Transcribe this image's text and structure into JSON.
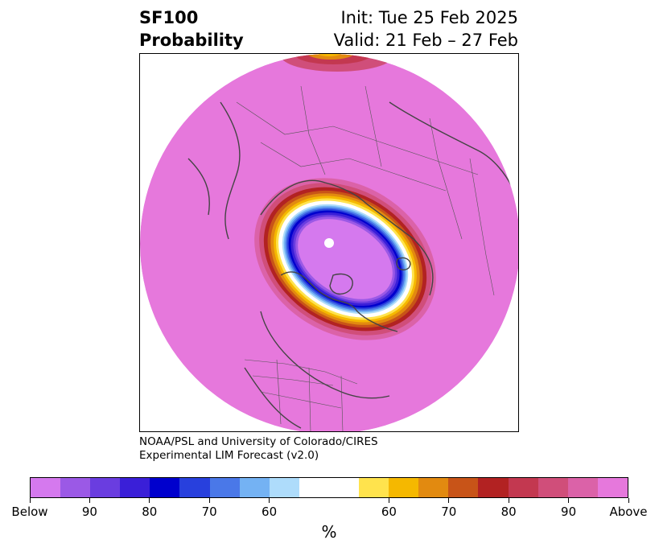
{
  "title": {
    "variable": "SF100",
    "subtitle": "Probability",
    "init": "Init: Tue 25 Feb 2025",
    "valid": "Valid: 21 Feb – 27 Feb"
  },
  "credit": {
    "line1": "NOAA/PSL and University of Colorado/CIRES",
    "line2": "Experimental LIM Forecast (v2.0)"
  },
  "colorbar": {
    "units": "%",
    "colors": [
      "#d579ee",
      "#9b59e6",
      "#6a3de0",
      "#3a1fd8",
      "#0000cd",
      "#2840dd",
      "#4a78e8",
      "#74b2f3",
      "#aedcfb",
      "#ffffff",
      "#ffffff",
      "#ffe34d",
      "#f5b800",
      "#e28a10",
      "#c85418",
      "#b22222",
      "#c33850",
      "#d04e7a",
      "#db62a8",
      "#e678dc"
    ],
    "tick_labels": [
      "Below",
      "90",
      "80",
      "70",
      "60",
      "60",
      "70",
      "80",
      "90",
      "Above"
    ]
  },
  "map": {
    "projection": "polar-stereographic-north",
    "background_color": "#e678dc",
    "anomaly_core_color": "#d579ee"
  }
}
